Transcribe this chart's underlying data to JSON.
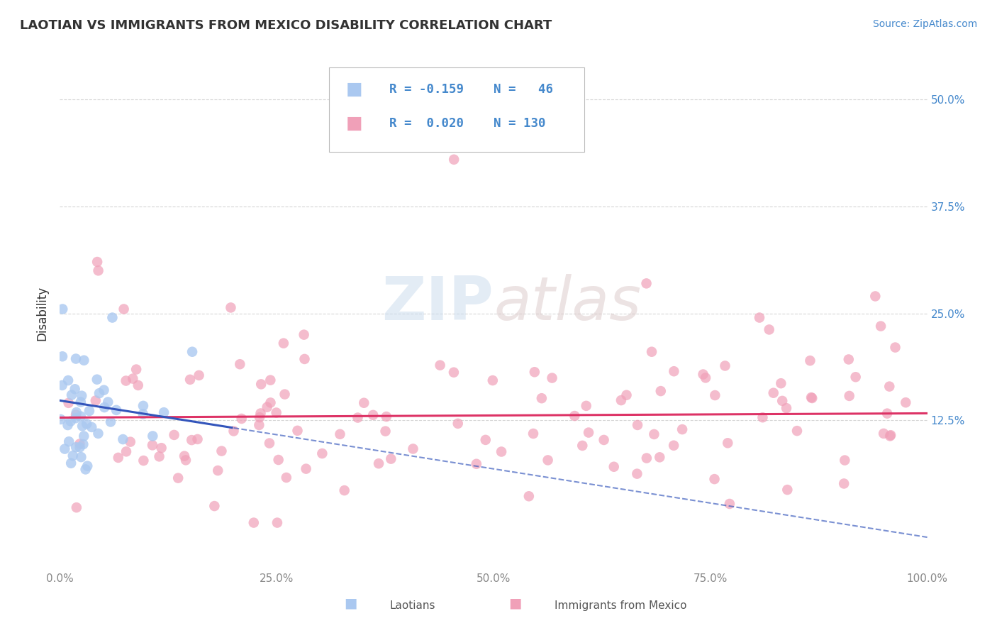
{
  "title": "LAOTIAN VS IMMIGRANTS FROM MEXICO DISABILITY CORRELATION CHART",
  "source": "Source: ZipAtlas.com",
  "ylabel": "Disability",
  "xlim": [
    0.0,
    1.0
  ],
  "ylim": [
    -0.05,
    0.55
  ],
  "xticklabels": [
    "0.0%",
    "",
    "25.0%",
    "",
    "50.0%",
    "",
    "75.0%",
    "",
    "100.0%"
  ],
  "xtick_positions": [
    0.0,
    0.125,
    0.25,
    0.375,
    0.5,
    0.625,
    0.75,
    0.875,
    1.0
  ],
  "ytick_positions": [
    0.125,
    0.25,
    0.375,
    0.5
  ],
  "yticklabels": [
    "12.5%",
    "25.0%",
    "37.5%",
    "50.0%"
  ],
  "grid_color": "#cccccc",
  "background_color": "#ffffff",
  "laotian_color": "#aac8f0",
  "mexico_color": "#f0a0b8",
  "laotian_line_color": "#3355bb",
  "mexico_line_color": "#dd3366",
  "legend_laotian_label": "Laotians",
  "legend_mexico_label": "Immigrants from Mexico",
  "R_laotian": -0.159,
  "N_laotian": 46,
  "R_mexico": 0.02,
  "N_mexico": 130,
  "laotian_seed": 7,
  "mexico_seed": 13,
  "title_color": "#333333",
  "source_color": "#4488cc",
  "tick_color": "#888888",
  "right_tick_color": "#4488cc"
}
